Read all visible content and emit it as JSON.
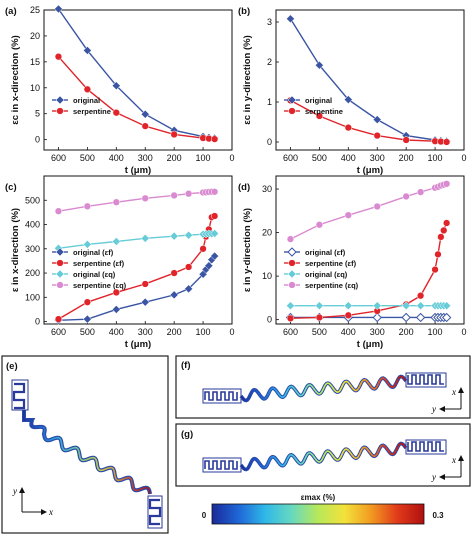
{
  "colors": {
    "original": "#3a55a4",
    "serpentine": "#e0242a",
    "original_q": "#66ccd8",
    "serpentine_q": "#d98ad0",
    "colorbar": [
      "#1a2a9a",
      "#1f66d6",
      "#2fb8e8",
      "#66d8c0",
      "#b8e85a",
      "#f2e23a",
      "#f29a22",
      "#e03a1a",
      "#b01010"
    ]
  },
  "chart_data": [
    {
      "panel": "(a)",
      "type": "line",
      "xlabel": "t (μm)",
      "ylabel": "εc in x-direction (%)",
      "xlim": [
        650,
        0
      ],
      "ylim": [
        -2,
        25
      ],
      "xticks": [
        600,
        500,
        400,
        300,
        200,
        100,
        0
      ],
      "yticks": [
        0,
        5,
        10,
        15,
        20,
        25
      ],
      "x": [
        600,
        500,
        400,
        300,
        200,
        100,
        80,
        60
      ],
      "legend_position": "center-left",
      "series": [
        {
          "name": "original",
          "color_key": "original",
          "marker": "diamond",
          "values": [
            25.2,
            17.2,
            10.4,
            4.9,
            1.8,
            0.6,
            0.4,
            0.3
          ]
        },
        {
          "name": "serpentine",
          "color_key": "serpentine",
          "marker": "circle",
          "values": [
            16.0,
            9.7,
            5.2,
            2.6,
            1.0,
            0.3,
            0.2,
            0.1
          ]
        }
      ]
    },
    {
      "panel": "(b)",
      "type": "line",
      "xlabel": "t (μm)",
      "ylabel": "εc in y-direction (%)",
      "xlim": [
        650,
        0
      ],
      "ylim": [
        -0.2,
        3.3
      ],
      "xticks": [
        600,
        500,
        400,
        300,
        200,
        100,
        0
      ],
      "yticks": [
        0,
        1,
        2,
        3
      ],
      "x": [
        600,
        500,
        400,
        300,
        200,
        100,
        80,
        60
      ],
      "legend_position": "center-left",
      "series": [
        {
          "name": "original",
          "color_key": "original",
          "marker": "diamond",
          "values": [
            3.08,
            1.92,
            1.06,
            0.56,
            0.16,
            0.05,
            0.03,
            0.02
          ]
        },
        {
          "name": "serpentine",
          "color_key": "serpentine",
          "marker": "circle",
          "values": [
            1.04,
            0.65,
            0.36,
            0.16,
            0.05,
            0.02,
            0.01,
            0.0
          ]
        }
      ]
    },
    {
      "panel": "(c)",
      "type": "line",
      "xlabel": "t (μm)",
      "ylabel": "ε in x-direction (%)",
      "xlim": [
        650,
        0
      ],
      "ylim": [
        -10,
        600
      ],
      "xticks": [
        600,
        500,
        400,
        300,
        200,
        100,
        0
      ],
      "yticks": [
        0,
        100,
        200,
        300,
        400,
        500
      ],
      "x": [
        600,
        500,
        400,
        300,
        200,
        150,
        100,
        90,
        80,
        70,
        60
      ],
      "legend_position": "left",
      "series": [
        {
          "name": "original (εf)",
          "color_key": "original",
          "marker": "diamond",
          "values": [
            5,
            10,
            50,
            80,
            110,
            135,
            195,
            215,
            230,
            255,
            270
          ]
        },
        {
          "name": "serpentine (εf)",
          "color_key": "serpentine",
          "marker": "circle",
          "values": [
            10,
            80,
            120,
            155,
            200,
            225,
            300,
            350,
            380,
            430,
            435
          ]
        },
        {
          "name": "original (εq)",
          "color_key": "original_q",
          "marker": "diamond",
          "values": [
            302,
            318,
            330,
            343,
            352,
            356,
            360,
            361,
            362,
            362,
            363
          ]
        },
        {
          "name": "serpentine (εq)",
          "color_key": "serpentine_q",
          "marker": "circle",
          "values": [
            455,
            475,
            492,
            508,
            520,
            527,
            532,
            533,
            534,
            535,
            535
          ]
        }
      ]
    },
    {
      "panel": "(d)",
      "type": "line",
      "xlabel": "t (μm)",
      "ylabel": "ε in y-direction (%)",
      "xlim": [
        650,
        0
      ],
      "ylim": [
        -1,
        33
      ],
      "xticks": [
        600,
        500,
        400,
        300,
        200,
        100,
        0
      ],
      "yticks": [
        0,
        10,
        20,
        30
      ],
      "x": [
        600,
        500,
        400,
        300,
        200,
        150,
        100,
        90,
        80,
        70,
        60
      ],
      "legend_position": "left",
      "series": [
        {
          "name": "original (εf)",
          "color_key": "original",
          "marker": "diamond-open",
          "values": [
            0.5,
            0.5,
            0.5,
            0.5,
            0.5,
            0.5,
            0.5,
            0.5,
            0.5,
            0.5,
            0.5
          ]
        },
        {
          "name": "serpentine (εf)",
          "color_key": "serpentine",
          "marker": "circle",
          "values": [
            0.3,
            0.5,
            1.0,
            2.0,
            3.5,
            5.5,
            11.5,
            15.0,
            19.0,
            20.5,
            22.2
          ]
        },
        {
          "name": "original (εq)",
          "color_key": "original_q",
          "marker": "diamond",
          "values": [
            3.2,
            3.2,
            3.2,
            3.2,
            3.2,
            3.2,
            3.2,
            3.2,
            3.2,
            3.2,
            3.2
          ]
        },
        {
          "name": "serpentine (εq)",
          "color_key": "serpentine_q",
          "marker": "circle",
          "values": [
            18.5,
            21.8,
            24.0,
            26.0,
            28.3,
            29.3,
            30.3,
            30.5,
            30.8,
            31.0,
            31.2
          ]
        }
      ]
    }
  ],
  "panels_lower": {
    "e": {
      "label": "(e)",
      "axis_y": "y",
      "axis_x": "x"
    },
    "f": {
      "label": "(f)",
      "axis_x": "x",
      "axis_y": "y"
    },
    "g": {
      "label": "(g)",
      "axis_x": "x",
      "axis_y": "y"
    }
  },
  "colorbar": {
    "label": "εmax (%)",
    "min_label": "0",
    "max_label": "0.3"
  }
}
